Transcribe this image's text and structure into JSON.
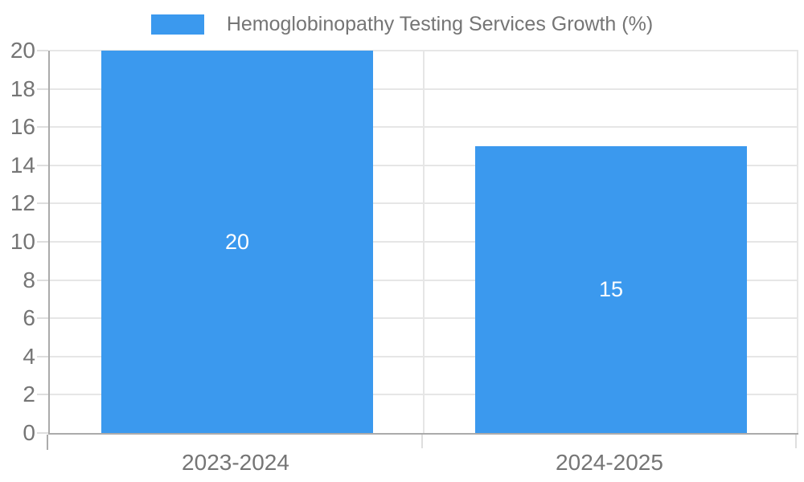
{
  "chart_data": {
    "type": "bar",
    "title": "Hemoglobinopathy Testing Services Growth (%)",
    "legend": {
      "label": "Hemoglobinopathy Testing Services Growth (%)",
      "position": "top-center"
    },
    "categories": [
      "2023-2024",
      "2024-2025"
    ],
    "series": [
      {
        "name": "Hemoglobinopathy Testing Services Growth (%)",
        "values": [
          20,
          15
        ]
      }
    ],
    "bar_value_labels": [
      "20",
      "15"
    ],
    "xlabel": "",
    "ylabel": "",
    "ylim": [
      0,
      20
    ],
    "yticks": [
      0,
      2,
      4,
      6,
      8,
      10,
      12,
      14,
      16,
      18,
      20
    ],
    "grid": true,
    "colors": {
      "bar": "#3b99ee",
      "bar_label_text": "#ffffff",
      "axis_text": "#757575",
      "gridline": "#e6e6e6",
      "tick": "#dedede",
      "axis_border": "#ababab",
      "background": "#ffffff"
    }
  }
}
